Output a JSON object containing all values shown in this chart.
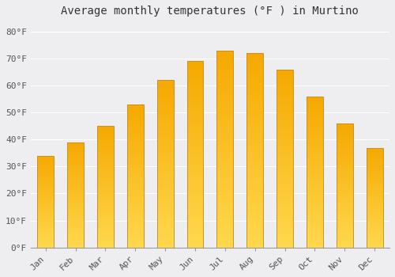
{
  "title": "Average monthly temperatures (°F ) in Murtino",
  "months": [
    "Jan",
    "Feb",
    "Mar",
    "Apr",
    "May",
    "Jun",
    "Jul",
    "Aug",
    "Sep",
    "Oct",
    "Nov",
    "Dec"
  ],
  "values": [
    34,
    39,
    45,
    53,
    62,
    69,
    73,
    72,
    66,
    56,
    46,
    37
  ],
  "bar_color_top": "#F5A800",
  "bar_color_bottom": "#FFD84D",
  "bar_border_color": "#C8922A",
  "ylim": [
    0,
    84
  ],
  "yticks": [
    0,
    10,
    20,
    30,
    40,
    50,
    60,
    70,
    80
  ],
  "ytick_labels": [
    "0°F",
    "10°F",
    "20°F",
    "30°F",
    "40°F",
    "50°F",
    "60°F",
    "70°F",
    "80°F"
  ],
  "background_color": "#eeeef0",
  "plot_bg_color": "#eeeef0",
  "grid_color": "#ffffff",
  "title_fontsize": 10,
  "tick_fontsize": 8,
  "font_family": "monospace",
  "bar_width": 0.55
}
